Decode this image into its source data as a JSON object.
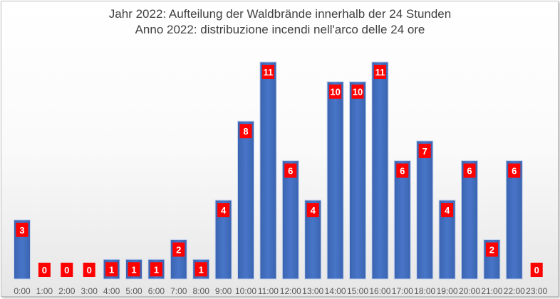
{
  "chart_data": {
    "type": "bar",
    "title": "Jahr 2022: Aufteilung der Waldbrände innerhalb der 24 Stunden",
    "subtitle": "Anno 2022: distribuzione incendi nell'arco delle 24 ore",
    "categories": [
      "0:00",
      "1:00",
      "2:00",
      "3:00",
      "4:00",
      "5:00",
      "6:00",
      "7:00",
      "8:00",
      "9:00",
      "10:00",
      "11:00",
      "12:00",
      "13:00",
      "14:00",
      "15:00",
      "16:00",
      "17:00",
      "18:00",
      "19:00",
      "20:00",
      "21:00",
      "22:00",
      "23:00"
    ],
    "values": [
      3,
      0,
      0,
      0,
      1,
      1,
      1,
      2,
      1,
      4,
      8,
      11,
      6,
      4,
      10,
      10,
      11,
      6,
      7,
      4,
      6,
      2,
      6,
      0
    ],
    "ylim": [
      0,
      11
    ],
    "grid": false,
    "legend": "none",
    "bar_color": "#4472c4",
    "label_bg_color": "#ff0000",
    "label_text_color": "#ffffff"
  }
}
